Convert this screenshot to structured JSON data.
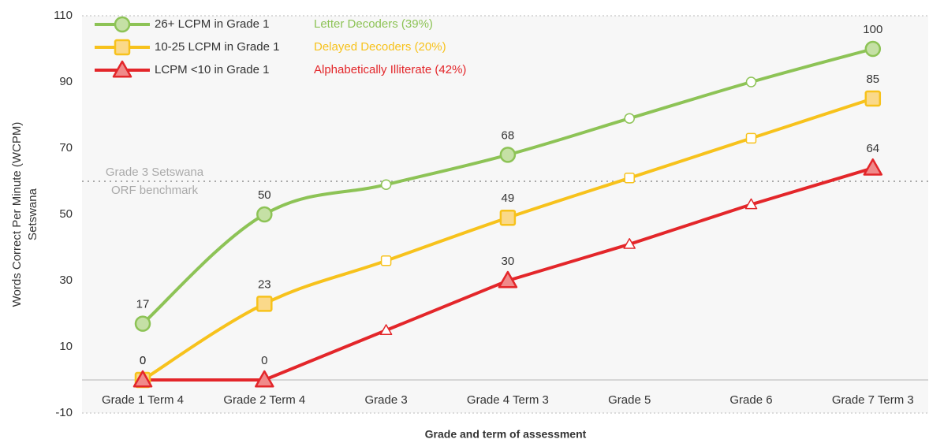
{
  "chart_data": {
    "type": "line",
    "categories": [
      "Grade 1 Term 4",
      "Grade 2 Term 4",
      "Grade 3",
      "Grade 4 Term 3",
      "Grade 5",
      "Grade 6",
      "Grade 7 Term 3"
    ],
    "series": [
      {
        "name": "26+ LCPM in Grade 1",
        "group": "Letter Decoders (39%)",
        "color": "#8dc356",
        "marker_fill": "#c5e0a5",
        "marker": "circle",
        "smooth": true,
        "values": [
          17,
          50,
          59,
          68,
          79,
          90,
          100
        ]
      },
      {
        "name": "10-25 LCPM in Grade 1",
        "group": "Delayed Decoders (20%)",
        "color": "#f7c21c",
        "marker_fill": "#fad98a",
        "marker": "square",
        "smooth": true,
        "values": [
          0,
          23,
          36,
          49,
          61,
          73,
          85
        ]
      },
      {
        "name": "LCPM <10 in Grade 1",
        "group": "Alphabetically Illiterate (42%)",
        "color": "#e3262a",
        "marker_fill": "#f08a8a",
        "marker": "triangle",
        "smooth": false,
        "values": [
          0,
          0,
          15,
          30,
          41,
          53,
          64
        ]
      }
    ],
    "labeled_points": [
      0,
      1,
      3,
      6
    ],
    "ylim": [
      -10,
      110
    ],
    "yticks": [
      -10,
      10,
      30,
      50,
      70,
      90,
      110
    ],
    "y_label": [
      "Words Correct Per Minute (WCPM)",
      "Setswana"
    ],
    "x_label": "Grade and term of assessment",
    "benchmark": {
      "value": 60,
      "label": [
        "Grade 3 Setswana",
        "ORF benchmark"
      ]
    },
    "legend": "top-left"
  }
}
